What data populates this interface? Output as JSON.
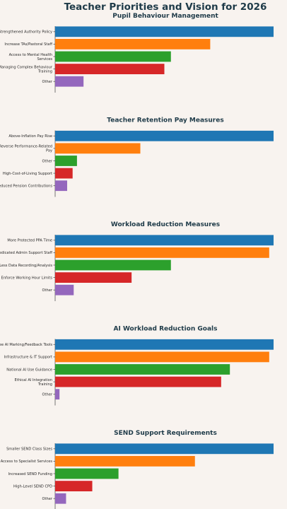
{
  "title": "Teacher Priorities and Vision for 2026",
  "colors": [
    "#1f77b4",
    "#ff7f0e",
    "#2ca02c",
    "#d62728",
    "#9467bd"
  ],
  "chart_data": [
    {
      "type": "bar",
      "orientation": "horizontal",
      "title": "Pupil Behaviour Management",
      "categories": [
        "Strengthened Authority Policy",
        "Increase TAs/Pastoral Staff",
        "Access to Mental Health Services",
        "Managing Complex Behaviour Training",
        "Other"
      ],
      "display_lines": [
        [
          "Strengthened Authority Policy"
        ],
        [
          "Increase TAs/Pastoral Staff"
        ],
        [
          "Access to Mental Health",
          "Services"
        ],
        [
          "Managing Complex Behaviour",
          "Training"
        ],
        [
          "Other"
        ]
      ],
      "values": [
        100,
        71,
        53,
        50,
        13
      ],
      "xlim": [
        0,
        100
      ]
    },
    {
      "type": "bar",
      "orientation": "horizontal",
      "title": "Teacher Retention Pay Measures",
      "categories": [
        "Above-Inflation Pay Rise",
        "Reverse Performance-Related Pay",
        "Other",
        "High-Cost-of-Living Support",
        "Reduced Pension Contributions"
      ],
      "display_lines": [
        [
          "Above-Inflation Pay Rise"
        ],
        [
          "Reverse Performance-Related",
          "Pay"
        ],
        [
          "Other"
        ],
        [
          "High-Cost-of-Living Support"
        ],
        [
          "Reduced Pension Contributions"
        ]
      ],
      "values": [
        100,
        39,
        10,
        8,
        5.5
      ],
      "xlim": [
        0,
        100
      ]
    },
    {
      "type": "bar",
      "orientation": "horizontal",
      "title": "Workload Reduction Measures",
      "categories": [
        "More Protected PPA Time",
        "Dedicated Admin Support Staff",
        "Less Data Recording/Analysis",
        "Enforce Working Hour Limits",
        "Other"
      ],
      "display_lines": [
        [
          "More Protected PPA Time"
        ],
        [
          "Dedicated Admin Support Staff"
        ],
        [
          "Less Data Recording/Analysis"
        ],
        [
          "Enforce Working Hour Limits"
        ],
        [
          "Other"
        ]
      ],
      "values": [
        100,
        98,
        53,
        35,
        8.5
      ],
      "xlim": [
        0,
        100
      ]
    },
    {
      "type": "bar",
      "orientation": "horizontal",
      "title": "AI Workload Reduction Goals",
      "categories": [
        "Free AI Marking/Feedback Tools",
        "Infrastructure & IT Support",
        "National AI Use Guidance",
        "Ethical AI Integration Training",
        "Other"
      ],
      "display_lines": [
        [
          "Free AI Marking/Feedback Tools"
        ],
        [
          "Infrastructure & IT Support"
        ],
        [
          "National AI Use Guidance"
        ],
        [
          "Ethical AI Integration",
          "Training"
        ],
        [
          "Other"
        ]
      ],
      "values": [
        100,
        98,
        80,
        76,
        2
      ],
      "xlim": [
        0,
        100
      ]
    },
    {
      "type": "bar",
      "orientation": "horizontal",
      "title": "SEND Support Requirements",
      "categories": [
        "Smaller SEND Class Sizes",
        "Access to Specialist Services",
        "Increased SEND Funding",
        "High-Level SEND CPD",
        "Other"
      ],
      "display_lines": [
        [
          "Smaller SEND Class Sizes"
        ],
        [
          "Access to Specialist Services"
        ],
        [
          "Increased SEND Funding"
        ],
        [
          "High-Level SEND CPD"
        ],
        [
          "Other"
        ]
      ],
      "values": [
        100,
        64,
        29,
        17,
        5
      ],
      "xlim": [
        0,
        100
      ]
    }
  ]
}
